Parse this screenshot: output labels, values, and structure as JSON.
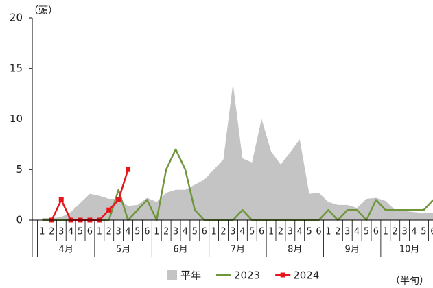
{
  "chart_data": {
    "type": "line",
    "y_unit": "（頭）",
    "x_unit": "（半旬）",
    "categories": [
      "1",
      "2",
      "3",
      "4",
      "5",
      "6",
      "1",
      "2",
      "3",
      "4",
      "5",
      "6",
      "1",
      "2",
      "3",
      "4",
      "5",
      "6",
      "1",
      "2",
      "3",
      "4",
      "5",
      "6",
      "1",
      "2",
      "3",
      "4",
      "5",
      "6",
      "1",
      "2",
      "3",
      "4",
      "5",
      "6",
      "1",
      "2",
      "3",
      "4",
      "5",
      "6"
    ],
    "months": [
      "4月",
      "5月",
      "6月",
      "7月",
      "8月",
      "9月",
      "10月"
    ],
    "ylim": [
      0,
      20
    ],
    "yticks": [
      0,
      5,
      10,
      15,
      20
    ],
    "series": [
      {
        "name": "平年",
        "kind": "area",
        "color": "#c4c4c4",
        "values": [
          0.2,
          0.2,
          0.3,
          0.8,
          1.7,
          2.6,
          2.4,
          2.1,
          2.1,
          1.4,
          1.5,
          2.2,
          1.8,
          2.7,
          3.0,
          3.0,
          3.5,
          4.0,
          5.0,
          6.0,
          13.5,
          6.1,
          5.7,
          10.0,
          6.8,
          5.5,
          6.7,
          8.0,
          2.6,
          2.7,
          1.8,
          1.5,
          1.5,
          1.2,
          2.1,
          2.2,
          1.9,
          1.0,
          0.9,
          0.8,
          0.7,
          0.7
        ]
      },
      {
        "name": "2023",
        "kind": "line",
        "color": "#70963c",
        "values": [
          0,
          0,
          0,
          0,
          0,
          0,
          0,
          0,
          3,
          0,
          1,
          2,
          0,
          5,
          7,
          5,
          1,
          0,
          0,
          0,
          0,
          1,
          0,
          0,
          0,
          0,
          0,
          0,
          0,
          0,
          1,
          0,
          1,
          1,
          0,
          2,
          1,
          1,
          1,
          1,
          1,
          2
        ]
      },
      {
        "name": "2024",
        "kind": "line",
        "marker": "square",
        "color": "#e8141c",
        "values": [
          null,
          0,
          2,
          0,
          0,
          0,
          0,
          1,
          2,
          5,
          null,
          null,
          null,
          null,
          null,
          null,
          null,
          null,
          null,
          null,
          null,
          null,
          null,
          null,
          null,
          null,
          null,
          null,
          null,
          null,
          null,
          null,
          null,
          null,
          null,
          null,
          null,
          null,
          null,
          null,
          null,
          null
        ]
      }
    ]
  }
}
